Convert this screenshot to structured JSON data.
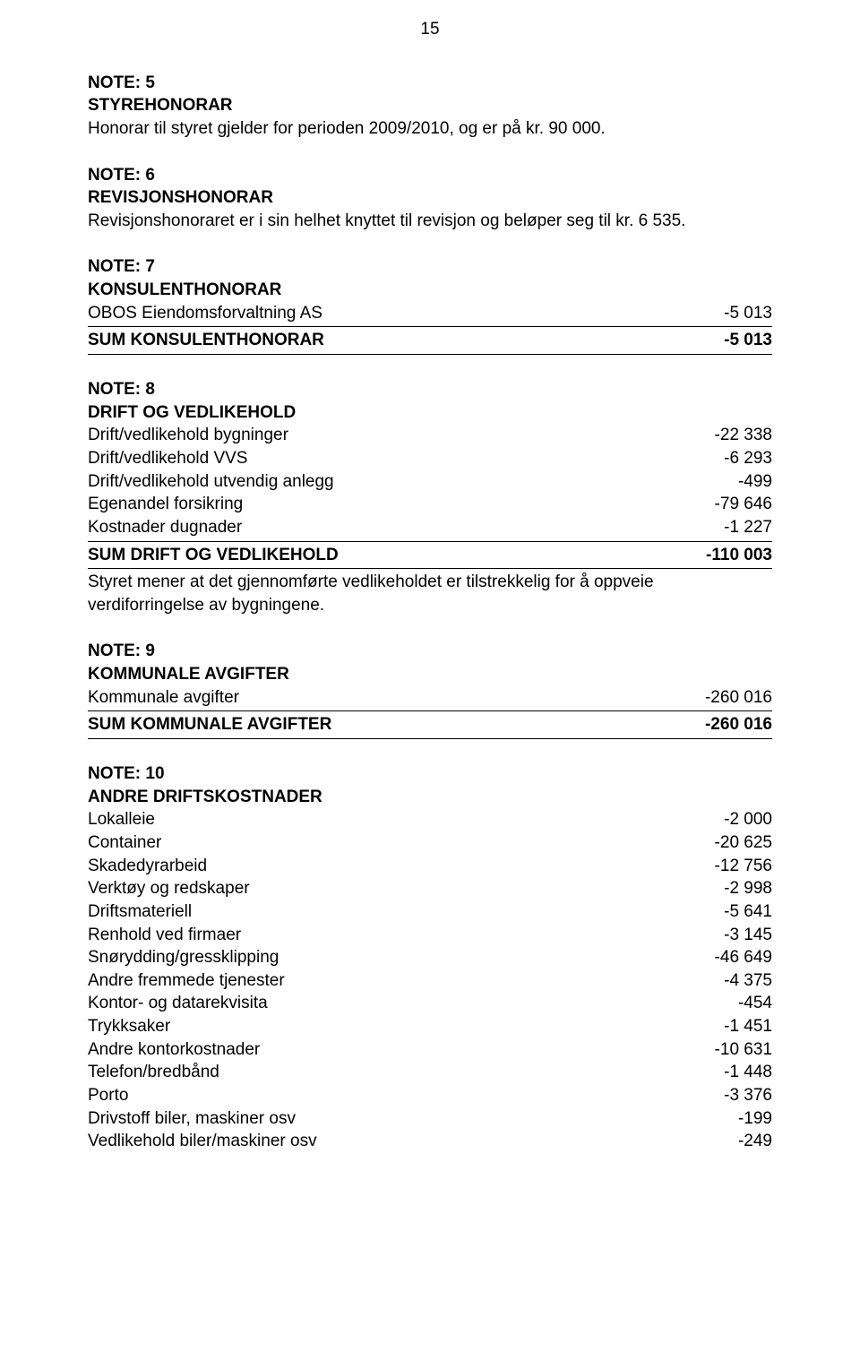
{
  "pageNumber": "15",
  "note5": {
    "label": "NOTE: 5",
    "title": "STYREHONORAR",
    "text": "Honorar til styret gjelder for perioden 2009/2010, og er på kr. 90 000."
  },
  "note6": {
    "label": "NOTE: 6",
    "title": "REVISJONSHONORAR",
    "text": "Revisjonshonoraret er i sin helhet knyttet til revisjon og beløper seg til kr. 6 535."
  },
  "note7": {
    "label": "NOTE: 7",
    "title": "KONSULENTHONORAR",
    "rows": [
      {
        "label": "OBOS Eiendomsforvaltning AS",
        "value": "-5 013"
      }
    ],
    "sumLabel": "SUM KONSULENTHONORAR",
    "sumValue": "-5 013"
  },
  "note8": {
    "label": "NOTE: 8",
    "title": "DRIFT OG VEDLIKEHOLD",
    "rows": [
      {
        "label": "Drift/vedlikehold bygninger",
        "value": "-22 338"
      },
      {
        "label": "Drift/vedlikehold VVS",
        "value": "-6 293"
      },
      {
        "label": "Drift/vedlikehold utvendig anlegg",
        "value": "-499"
      },
      {
        "label": "Egenandel forsikring",
        "value": "-79 646"
      },
      {
        "label": "Kostnader dugnader",
        "value": "-1 227"
      }
    ],
    "sumLabel": "SUM DRIFT OG VEDLIKEHOLD",
    "sumValue": "-110 003",
    "footer": "Styret mener at det gjennomførte vedlikeholdet er tilstrekkelig for å oppveie verdiforringelse av bygningene."
  },
  "note9": {
    "label": "NOTE: 9",
    "title": "KOMMUNALE AVGIFTER",
    "rows": [
      {
        "label": "Kommunale avgifter",
        "value": "-260 016"
      }
    ],
    "sumLabel": "SUM KOMMUNALE AVGIFTER",
    "sumValue": "-260 016"
  },
  "note10": {
    "label": "NOTE: 10",
    "title": "ANDRE DRIFTSKOSTNADER",
    "rows": [
      {
        "label": "Lokalleie",
        "value": "-2 000"
      },
      {
        "label": "Container",
        "value": "-20 625"
      },
      {
        "label": "Skadedyrarbeid",
        "value": "-12 756"
      },
      {
        "label": "Verktøy og redskaper",
        "value": "-2 998"
      },
      {
        "label": "Driftsmateriell",
        "value": "-5 641"
      },
      {
        "label": "Renhold ved firmaer",
        "value": "-3 145"
      },
      {
        "label": "Snørydding/gressklipping",
        "value": "-46 649"
      },
      {
        "label": "Andre fremmede tjenester",
        "value": "-4 375"
      },
      {
        "label": "Kontor- og datarekvisita",
        "value": "-454"
      },
      {
        "label": "Trykksaker",
        "value": "-1 451"
      },
      {
        "label": "Andre kontorkostnader",
        "value": "-10 631"
      },
      {
        "label": "Telefon/bredbånd",
        "value": "-1 448"
      },
      {
        "label": "Porto",
        "value": "-3 376"
      },
      {
        "label": "Drivstoff biler, maskiner osv",
        "value": "-199"
      },
      {
        "label": "Vedlikehold biler/maskiner osv",
        "value": "-249"
      }
    ]
  }
}
